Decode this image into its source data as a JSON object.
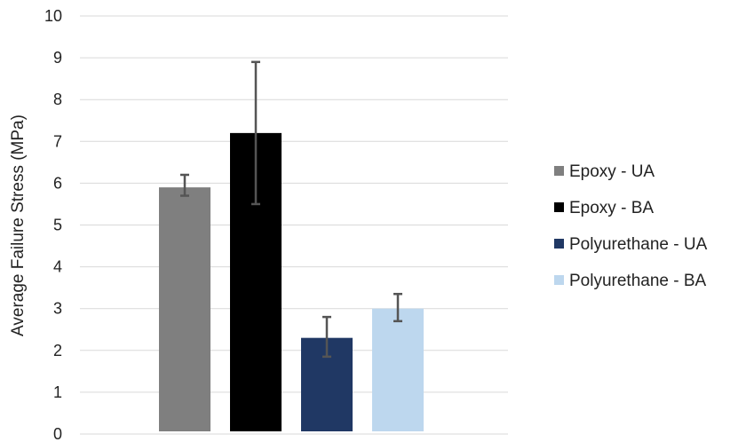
{
  "chart_data": {
    "type": "bar",
    "title": "",
    "xlabel": "",
    "ylabel": "Average Failure Stress (MPa)",
    "ylim": [
      0,
      10
    ],
    "yticks": [
      0,
      1,
      2,
      3,
      4,
      5,
      6,
      7,
      8,
      9,
      10
    ],
    "grid": true,
    "legend_position": "right",
    "series": [
      {
        "name": "Epoxy - UA",
        "value": 5.9,
        "error_low": 5.7,
        "error_high": 6.2,
        "color": "#7f7f7f"
      },
      {
        "name": "Epoxy - BA",
        "value": 7.2,
        "error_low": 5.5,
        "error_high": 8.9,
        "color": "#000000"
      },
      {
        "name": "Polyurethane - UA",
        "value": 2.3,
        "error_low": 1.85,
        "error_high": 2.8,
        "color": "#203864"
      },
      {
        "name": "Polyurethane - BA",
        "value": 3.0,
        "error_low": 2.7,
        "error_high": 3.35,
        "color": "#bdd7ee"
      }
    ]
  }
}
